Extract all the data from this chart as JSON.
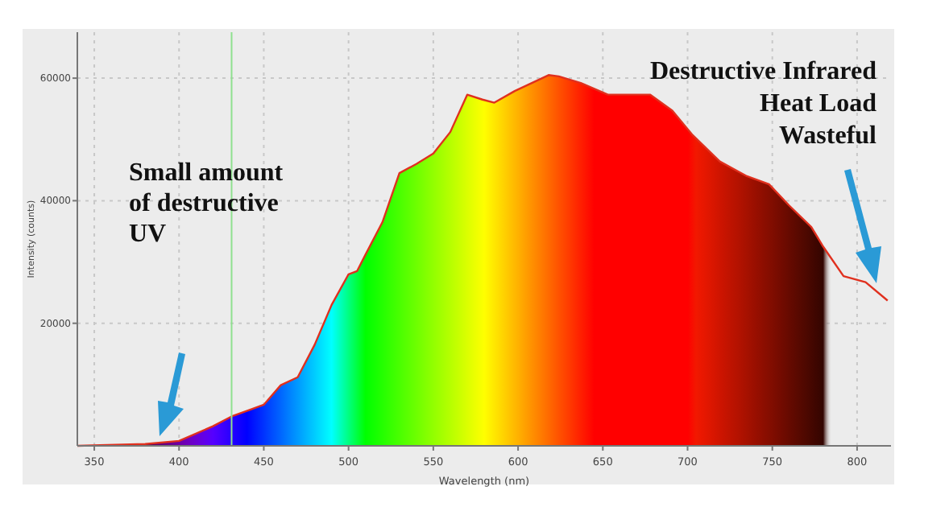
{
  "chart_data": {
    "type": "area",
    "xlabel": "Wavelength (nm)",
    "ylabel": "Intensity (counts)",
    "xlim": [
      340,
      820
    ],
    "xticks": [
      350,
      400,
      450,
      500,
      550,
      600,
      650,
      700,
      750,
      800
    ],
    "ylim": [
      0,
      67500
    ],
    "yticks": [
      20000,
      40000,
      60000
    ],
    "grid": true,
    "series": [
      {
        "color": "#e0301e",
        "x": [
          340,
          380,
          400,
          420,
          431,
          450,
          460,
          470,
          480,
          490,
          500,
          505,
          510,
          520,
          530,
          540,
          550,
          560,
          570,
          579,
          586,
          598,
          618,
          624,
          637,
          653,
          665,
          678,
          691,
          703,
          719,
          735,
          748,
          760,
          773,
          780,
          792,
          805,
          818
        ],
        "values": [
          0,
          300,
          800,
          3200,
          4800,
          6700,
          9900,
          11200,
          16500,
          23000,
          28000,
          28500,
          31200,
          36500,
          44500,
          46000,
          47700,
          51200,
          57300,
          56500,
          56000,
          57900,
          60500,
          60300,
          59200,
          57300,
          57300,
          57300,
          54700,
          50700,
          46400,
          44000,
          42700,
          39200,
          35700,
          32500,
          27700,
          26700,
          23700
        ]
      }
    ],
    "ref_lines": [
      {
        "axis": "x",
        "value": 431,
        "color": "#8fe08f"
      }
    ],
    "annotations": [
      "Small amount\nof destructive\nUV",
      "Destructive Infrared\nHeat Load\nWasteful"
    ]
  }
}
